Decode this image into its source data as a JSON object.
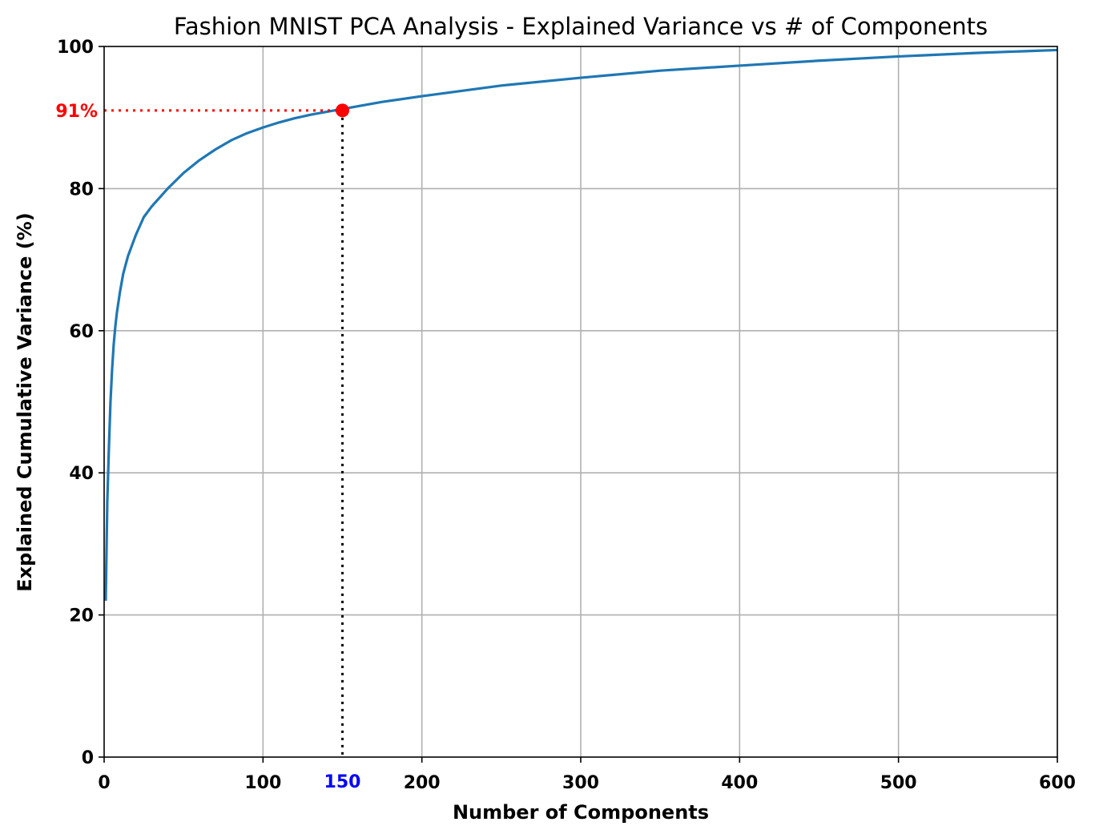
{
  "chart_data": {
    "type": "line",
    "title": "Fashion MNIST PCA Analysis - Explained Variance vs # of Components",
    "xlabel": "Number of Components",
    "ylabel": "Explained Cumulative Variance (%)",
    "xlim": [
      0,
      600
    ],
    "ylim": [
      0,
      100
    ],
    "x_ticks": [
      "0",
      "100",
      "200",
      "300",
      "400",
      "500",
      "600"
    ],
    "y_ticks": [
      "0",
      "20",
      "40",
      "60",
      "80",
      "100"
    ],
    "grid": true,
    "series": [
      {
        "color": "#1f77b4",
        "x": [
          1,
          2,
          3,
          4,
          5,
          6,
          7,
          8,
          10,
          12,
          15,
          20,
          25,
          30,
          40,
          50,
          60,
          70,
          80,
          90,
          100,
          110,
          120,
          130,
          140,
          150,
          175,
          200,
          250,
          300,
          350,
          400,
          450,
          500,
          550,
          600
        ],
        "y": [
          22,
          36,
          43.5,
          50,
          54.5,
          58,
          60.5,
          62.5,
          65.5,
          68,
          70.5,
          73.5,
          76,
          77.5,
          80,
          82.2,
          84,
          85.5,
          86.8,
          87.8,
          88.6,
          89.3,
          89.9,
          90.4,
          90.8,
          91.2,
          92.2,
          93,
          94.5,
          95.6,
          96.6,
          97.3,
          98,
          98.6,
          99.1,
          99.5
        ]
      }
    ],
    "annotation": {
      "x": 150,
      "y": 91,
      "point_color": "#ff0000",
      "y_label": "91%",
      "y_label_color": "#ff0000",
      "x_label": "150",
      "x_label_color": "#0000ff"
    }
  }
}
